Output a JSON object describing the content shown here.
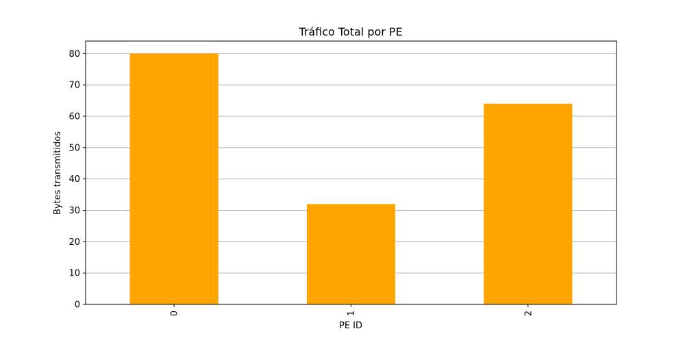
{
  "chart_data": {
    "type": "bar",
    "title": "Tráfico Total por PE",
    "xlabel": "PE ID",
    "ylabel": "Bytes transmitidos",
    "categories": [
      "0",
      "1",
      "2"
    ],
    "values": [
      80,
      32,
      64
    ],
    "ylim": [
      0,
      84
    ],
    "yticks": [
      0,
      10,
      20,
      30,
      40,
      50,
      60,
      70,
      80
    ],
    "bar_color": "#ffa500",
    "grid": "y-axis horizontal",
    "xtick_rotation": "vertical",
    "legend": "none"
  }
}
